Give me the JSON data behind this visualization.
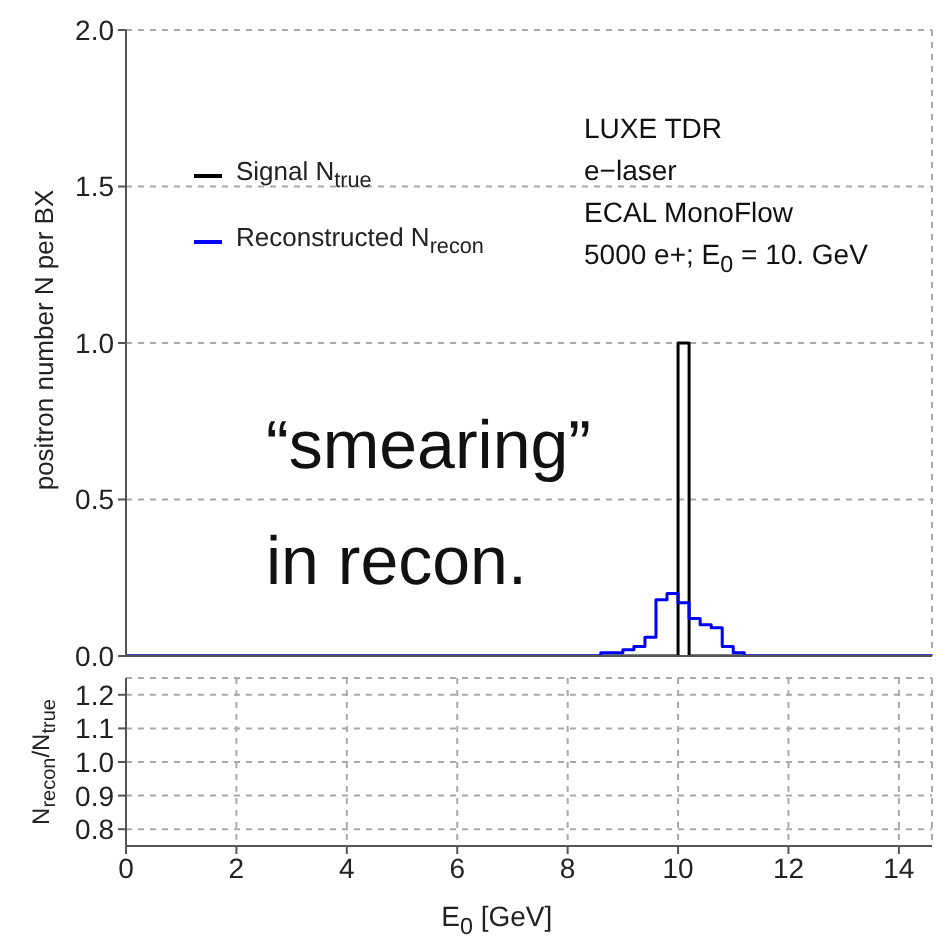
{
  "chart_data": [
    {
      "type": "histogram",
      "ylabel": "positron number N per BX",
      "bins": [
        0,
        8.6,
        8.8,
        9.0,
        9.2,
        9.4,
        9.6,
        9.8,
        10.0,
        10.2,
        10.4,
        10.6,
        10.8,
        11.0,
        11.2,
        14.6
      ],
      "series": [
        {
          "name": "Signal N$_{true}$",
          "color": "#000000",
          "values": [
            0,
            0,
            0,
            0,
            0,
            0,
            0,
            0,
            1,
            0,
            0,
            0,
            0,
            0,
            0
          ]
        },
        {
          "name": "Reconstructed N$_{recon}$",
          "color": "#0000ff",
          "values": [
            0,
            0.01,
            0.01,
            0.02,
            0.03,
            0.06,
            0.18,
            0.2,
            0.17,
            0.12,
            0.1,
            0.09,
            0.03,
            0.01,
            0
          ]
        }
      ],
      "xlim": [
        0,
        14.6
      ],
      "xticks": [
        0,
        2,
        4,
        6,
        8,
        10,
        12,
        14
      ],
      "ylim": [
        0,
        2
      ],
      "yticks": [
        {
          "value": 0,
          "label": "0.0"
        },
        {
          "value": 0.5,
          "label": "0.5"
        },
        {
          "value": 1,
          "label": "1.0"
        },
        {
          "value": 1.5,
          "label": "1.5"
        },
        {
          "value": 2,
          "label": "2.0"
        }
      ],
      "tick_labels": "y",
      "grid": true,
      "legend": "top left",
      "annotations": [
        "LUXE TDR",
        "e−laser",
        "ECAL MonoFlow",
        "5000 e+; E$_{0}$ = 10. GeV",
        "“smearing”",
        "in recon."
      ]
    },
    {
      "type": "line",
      "xlabel": "E$_{0}$ [GeV]",
      "ylabel": "N$_{recon}$/N$_{true}$",
      "xlim": [
        0,
        14.6
      ],
      "xticks": [
        0,
        2,
        4,
        6,
        8,
        10,
        12,
        14
      ],
      "ylim": [
        0.75,
        1.25
      ],
      "yticks": [
        0.8,
        0.9,
        {
          "value": 1,
          "label": "1.0"
        },
        1.1,
        1.2
      ],
      "grid": true
    }
  ]
}
